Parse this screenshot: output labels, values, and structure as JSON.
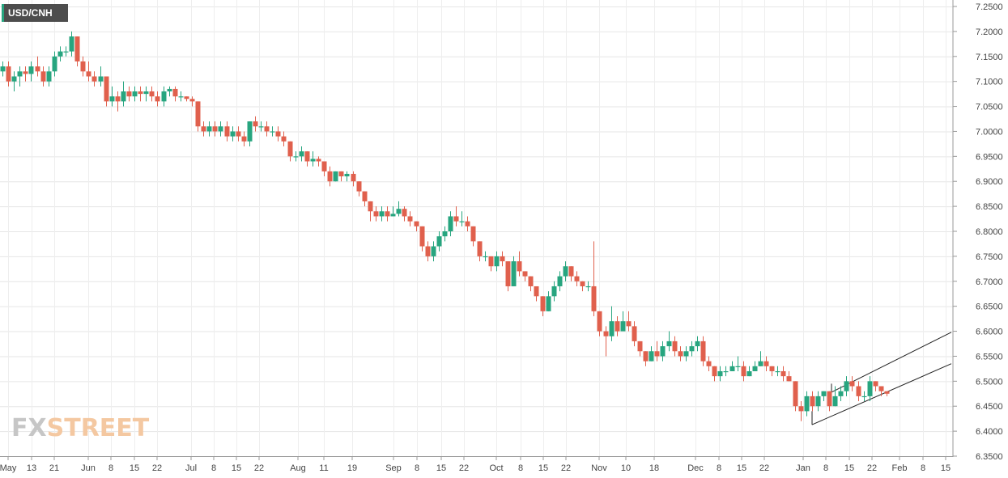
{
  "symbol": "USD/CNH",
  "logo": {
    "part1": "FX",
    "part2": "STREET"
  },
  "chart_data": {
    "type": "candlestick",
    "title": "USD/CNH",
    "ylim": [
      6.35,
      7.25
    ],
    "y_ticks": [
      "7.2500",
      "7.2000",
      "7.1500",
      "7.1000",
      "7.0500",
      "7.0000",
      "6.9500",
      "6.9000",
      "6.8500",
      "6.8000",
      "6.7500",
      "6.7000",
      "6.6500",
      "6.6000",
      "6.5500",
      "6.5000",
      "6.4500",
      "6.4000",
      "6.3500"
    ],
    "x_ticks": [
      "May",
      "13",
      "21",
      "Jun",
      "8",
      "15",
      "22",
      "Jul",
      "8",
      "15",
      "22",
      "Aug",
      "11",
      "19",
      "Sep",
      "8",
      "15",
      "22",
      "Oct",
      "8",
      "15",
      "22",
      "Nov",
      "10",
      "18",
      "Dec",
      "8",
      "15",
      "22",
      "Jan",
      "8",
      "15",
      "22",
      "Feb",
      "8",
      "15"
    ],
    "grid": true,
    "up_color": "#27a57f",
    "down_color": "#e0604d",
    "candles": [
      [
        7.12,
        7.13,
        7.14,
        7.11
      ],
      [
        7.13,
        7.1,
        7.14,
        7.09
      ],
      [
        7.1,
        7.11,
        7.12,
        7.08
      ],
      [
        7.11,
        7.12,
        7.13,
        7.09
      ],
      [
        7.12,
        7.115,
        7.13,
        7.1
      ],
      [
        7.115,
        7.13,
        7.14,
        7.1
      ],
      [
        7.13,
        7.12,
        7.15,
        7.11
      ],
      [
        7.12,
        7.1,
        7.13,
        7.09
      ],
      [
        7.1,
        7.12,
        7.13,
        7.09
      ],
      [
        7.12,
        7.15,
        7.16,
        7.11
      ],
      [
        7.15,
        7.16,
        7.17,
        7.14
      ],
      [
        7.16,
        7.16,
        7.17,
        7.15
      ],
      [
        7.16,
        7.19,
        7.2,
        7.15
      ],
      [
        7.19,
        7.14,
        7.19,
        7.13
      ],
      [
        7.14,
        7.12,
        7.15,
        7.11
      ],
      [
        7.12,
        7.11,
        7.14,
        7.1
      ],
      [
        7.11,
        7.1,
        7.12,
        7.09
      ],
      [
        7.1,
        7.11,
        7.13,
        7.09
      ],
      [
        7.11,
        7.06,
        7.11,
        7.05
      ],
      [
        7.06,
        7.07,
        7.09,
        7.05
      ],
      [
        7.07,
        7.06,
        7.08,
        7.04
      ],
      [
        7.06,
        7.08,
        7.1,
        7.05
      ],
      [
        7.08,
        7.07,
        7.09,
        7.06
      ],
      [
        7.07,
        7.08,
        7.09,
        7.06
      ],
      [
        7.08,
        7.075,
        7.09,
        7.06
      ],
      [
        7.075,
        7.08,
        7.09,
        7.06
      ],
      [
        7.08,
        7.07,
        7.09,
        7.06
      ],
      [
        7.07,
        7.06,
        7.08,
        7.05
      ],
      [
        7.06,
        7.08,
        7.09,
        7.05
      ],
      [
        7.08,
        7.085,
        7.09,
        7.07
      ],
      [
        7.085,
        7.07,
        7.09,
        7.06
      ],
      [
        7.07,
        7.07,
        7.08,
        7.06
      ],
      [
        7.07,
        7.065,
        7.07,
        7.06
      ],
      [
        7.065,
        7.06,
        7.07,
        7.05
      ],
      [
        7.06,
        7.01,
        7.06,
        7.0
      ],
      [
        7.01,
        7.0,
        7.02,
        6.99
      ],
      [
        7.0,
        7.01,
        7.02,
        6.99
      ],
      [
        7.01,
        7.0,
        7.02,
        6.99
      ],
      [
        7.0,
        7.01,
        7.02,
        6.99
      ],
      [
        7.01,
        6.99,
        7.02,
        6.98
      ],
      [
        6.99,
        7.0,
        7.01,
        6.98
      ],
      [
        7.0,
        6.99,
        7.01,
        6.98
      ],
      [
        6.99,
        6.98,
        7.0,
        6.97
      ],
      [
        6.98,
        7.02,
        7.02,
        6.97
      ],
      [
        7.02,
        7.01,
        7.03,
        7.0
      ],
      [
        7.01,
        7.01,
        7.02,
        7.0
      ],
      [
        7.01,
        7.0,
        7.02,
        6.99
      ],
      [
        7.0,
        7.0,
        7.01,
        6.99
      ],
      [
        7.0,
        6.99,
        7.01,
        6.98
      ],
      [
        6.99,
        6.98,
        7.0,
        6.97
      ],
      [
        6.98,
        6.95,
        6.98,
        6.94
      ],
      [
        6.95,
        6.95,
        6.96,
        6.94
      ],
      [
        6.95,
        6.96,
        6.97,
        6.94
      ],
      [
        6.96,
        6.94,
        6.96,
        6.93
      ],
      [
        6.94,
        6.945,
        6.96,
        6.93
      ],
      [
        6.945,
        6.94,
        6.95,
        6.93
      ],
      [
        6.94,
        6.92,
        6.94,
        6.91
      ],
      [
        6.92,
        6.9,
        6.93,
        6.89
      ],
      [
        6.9,
        6.92,
        6.92,
        6.9
      ],
      [
        6.92,
        6.91,
        6.92,
        6.9
      ],
      [
        6.91,
        6.915,
        6.92,
        6.9
      ],
      [
        6.915,
        6.9,
        6.92,
        6.89
      ],
      [
        6.9,
        6.88,
        6.9,
        6.87
      ],
      [
        6.88,
        6.86,
        6.88,
        6.85
      ],
      [
        6.86,
        6.84,
        6.86,
        6.82
      ],
      [
        6.84,
        6.83,
        6.85,
        6.82
      ],
      [
        6.83,
        6.84,
        6.85,
        6.82
      ],
      [
        6.84,
        6.83,
        6.85,
        6.82
      ],
      [
        6.83,
        6.835,
        6.85,
        6.83
      ],
      [
        6.835,
        6.845,
        6.86,
        6.83
      ],
      [
        6.845,
        6.83,
        6.85,
        6.82
      ],
      [
        6.83,
        6.82,
        6.84,
        6.81
      ],
      [
        6.82,
        6.81,
        6.82,
        6.8
      ],
      [
        6.81,
        6.77,
        6.81,
        6.76
      ],
      [
        6.77,
        6.75,
        6.78,
        6.74
      ],
      [
        6.75,
        6.77,
        6.78,
        6.74
      ],
      [
        6.77,
        6.79,
        6.8,
        6.76
      ],
      [
        6.79,
        6.8,
        6.81,
        6.78
      ],
      [
        6.8,
        6.83,
        6.84,
        6.79
      ],
      [
        6.83,
        6.82,
        6.85,
        6.81
      ],
      [
        6.82,
        6.82,
        6.84,
        6.81
      ],
      [
        6.82,
        6.81,
        6.83,
        6.8
      ],
      [
        6.81,
        6.78,
        6.81,
        6.77
      ],
      [
        6.78,
        6.75,
        6.78,
        6.74
      ],
      [
        6.75,
        6.75,
        6.76,
        6.74
      ],
      [
        6.75,
        6.73,
        6.75,
        6.72
      ],
      [
        6.73,
        6.75,
        6.76,
        6.72
      ],
      [
        6.75,
        6.74,
        6.76,
        6.73
      ],
      [
        6.74,
        6.69,
        6.74,
        6.68
      ],
      [
        6.69,
        6.74,
        6.75,
        6.69
      ],
      [
        6.74,
        6.72,
        6.76,
        6.71
      ],
      [
        6.72,
        6.71,
        6.72,
        6.7
      ],
      [
        6.71,
        6.69,
        6.71,
        6.68
      ],
      [
        6.69,
        6.67,
        6.69,
        6.66
      ],
      [
        6.67,
        6.64,
        6.67,
        6.63
      ],
      [
        6.64,
        6.67,
        6.68,
        6.64
      ],
      [
        6.67,
        6.69,
        6.7,
        6.66
      ],
      [
        6.69,
        6.71,
        6.72,
        6.68
      ],
      [
        6.71,
        6.73,
        6.74,
        6.7
      ],
      [
        6.73,
        6.71,
        6.73,
        6.7
      ],
      [
        6.71,
        6.7,
        6.72,
        6.69
      ],
      [
        6.7,
        6.69,
        6.7,
        6.68
      ],
      [
        6.69,
        6.69,
        6.7,
        6.68
      ],
      [
        6.69,
        6.64,
        6.78,
        6.63
      ],
      [
        6.64,
        6.6,
        6.64,
        6.59
      ],
      [
        6.6,
        6.59,
        6.61,
        6.55
      ],
      [
        6.59,
        6.62,
        6.65,
        6.58
      ],
      [
        6.62,
        6.6,
        6.63,
        6.59
      ],
      [
        6.6,
        6.62,
        6.64,
        6.6
      ],
      [
        6.62,
        6.61,
        6.64,
        6.6
      ],
      [
        6.61,
        6.58,
        6.62,
        6.57
      ],
      [
        6.58,
        6.56,
        6.58,
        6.55
      ],
      [
        6.56,
        6.54,
        6.56,
        6.53
      ],
      [
        6.54,
        6.56,
        6.57,
        6.54
      ],
      [
        6.56,
        6.55,
        6.58,
        6.54
      ],
      [
        6.55,
        6.57,
        6.58,
        6.54
      ],
      [
        6.57,
        6.58,
        6.6,
        6.56
      ],
      [
        6.58,
        6.56,
        6.59,
        6.55
      ],
      [
        6.56,
        6.55,
        6.57,
        6.54
      ],
      [
        6.55,
        6.56,
        6.57,
        6.54
      ],
      [
        6.56,
        6.57,
        6.58,
        6.55
      ],
      [
        6.57,
        6.58,
        6.59,
        6.56
      ],
      [
        6.58,
        6.54,
        6.59,
        6.53
      ],
      [
        6.54,
        6.53,
        6.55,
        6.52
      ],
      [
        6.53,
        6.51,
        6.53,
        6.5
      ],
      [
        6.51,
        6.52,
        6.53,
        6.5
      ],
      [
        6.52,
        6.52,
        6.53,
        6.51
      ],
      [
        6.52,
        6.53,
        6.54,
        6.52
      ],
      [
        6.53,
        6.53,
        6.55,
        6.52
      ],
      [
        6.53,
        6.51,
        6.54,
        6.5
      ],
      [
        6.51,
        6.52,
        6.53,
        6.51
      ],
      [
        6.52,
        6.53,
        6.54,
        6.52
      ],
      [
        6.53,
        6.54,
        6.56,
        6.53
      ],
      [
        6.54,
        6.53,
        6.55,
        6.52
      ],
      [
        6.53,
        6.52,
        6.53,
        6.51
      ],
      [
        6.52,
        6.52,
        6.53,
        6.51
      ],
      [
        6.52,
        6.51,
        6.53,
        6.5
      ],
      [
        6.51,
        6.5,
        6.52,
        6.5
      ],
      [
        6.5,
        6.45,
        6.5,
        6.44
      ],
      [
        6.45,
        6.44,
        6.46,
        6.42
      ],
      [
        6.44,
        6.47,
        6.48,
        6.43
      ],
      [
        6.47,
        6.45,
        6.48,
        6.44
      ],
      [
        6.45,
        6.47,
        6.48,
        6.44
      ],
      [
        6.47,
        6.48,
        6.48,
        6.46
      ],
      [
        6.48,
        6.45,
        6.48,
        6.44
      ],
      [
        6.45,
        6.47,
        6.49,
        6.45
      ],
      [
        6.47,
        6.48,
        6.49,
        6.46
      ],
      [
        6.48,
        6.5,
        6.51,
        6.47
      ],
      [
        6.5,
        6.49,
        6.51,
        6.48
      ],
      [
        6.49,
        6.47,
        6.5,
        6.46
      ],
      [
        6.47,
        6.47,
        6.48,
        6.46
      ],
      [
        6.47,
        6.5,
        6.51,
        6.46
      ],
      [
        6.5,
        6.49,
        6.5,
        6.48
      ],
      [
        6.49,
        6.48,
        6.49,
        6.47
      ],
      [
        6.48,
        6.475,
        6.48,
        6.47
      ]
    ]
  }
}
